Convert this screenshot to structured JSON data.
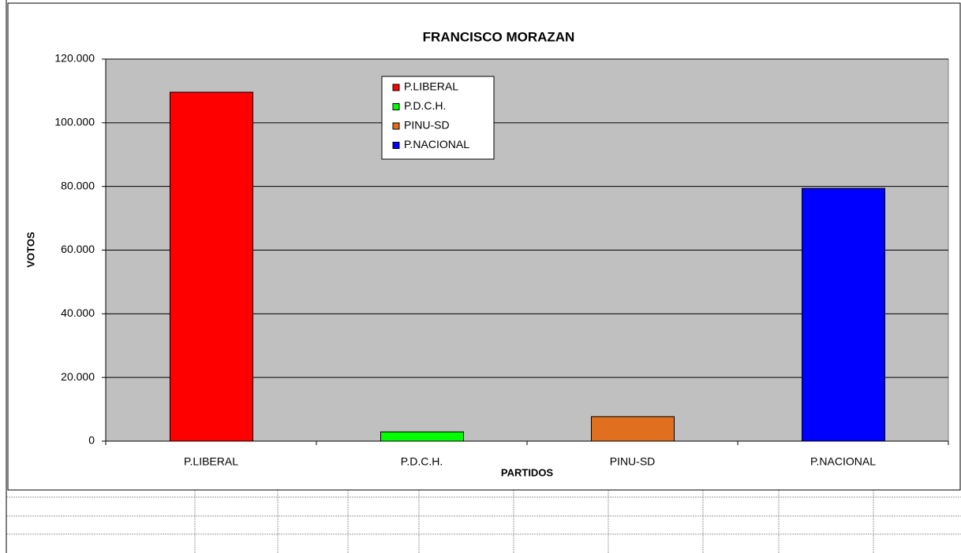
{
  "chart_data": {
    "type": "bar",
    "title": "FRANCISCO MORAZAN",
    "x_label": "PARTIDOS",
    "y_label": "VOTOS",
    "categories": [
      "P.LIBERAL",
      "P.D.C.H.",
      "PINU-SD",
      "P.NACIONAL"
    ],
    "values": [
      109600,
      2900,
      7700,
      79400
    ],
    "colors": [
      "#ff0000",
      "#00ff00",
      "#e07020",
      "#0000ff"
    ],
    "ylim": [
      0,
      120000
    ],
    "yticks": [
      0,
      {
        "value": 20000,
        "label": "20.000"
      },
      {
        "value": 40000,
        "label": "40.000"
      },
      {
        "value": 60000,
        "label": "60.000"
      },
      {
        "value": 80000,
        "label": "80.000"
      },
      {
        "value": 100000,
        "label": "100.000"
      },
      {
        "value": 120000,
        "label": "120.000"
      }
    ],
    "grid": true,
    "legend": "top"
  }
}
